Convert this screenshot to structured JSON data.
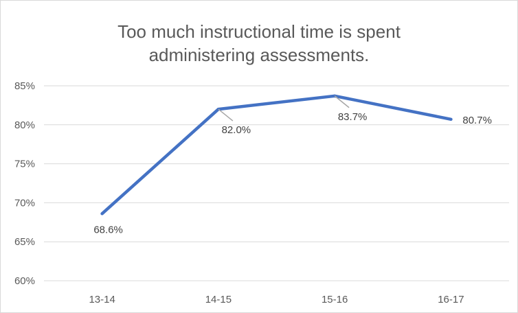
{
  "chart_data": {
    "type": "line",
    "title_lines": [
      "Too much instructional time is spent",
      "administering assessments."
    ],
    "categories": [
      "13-14",
      "14-15",
      "15-16",
      "16-17"
    ],
    "series": [
      {
        "values": [
          68.6,
          82.0,
          83.7,
          80.7
        ],
        "color": "#4472c4"
      }
    ],
    "data_labels": [
      "68.6%",
      "82.0%",
      "83.7%",
      "80.7%"
    ],
    "y_ticks": [
      60,
      65,
      70,
      75,
      80,
      85
    ],
    "y_tick_labels": [
      "60%",
      "65%",
      "70%",
      "75%",
      "80%",
      "85%"
    ],
    "ylim": [
      60,
      85
    ],
    "grid": true,
    "legend": "none",
    "gridline_color": "#d9d9d9",
    "leader_line_color": "#a6a6a6"
  }
}
